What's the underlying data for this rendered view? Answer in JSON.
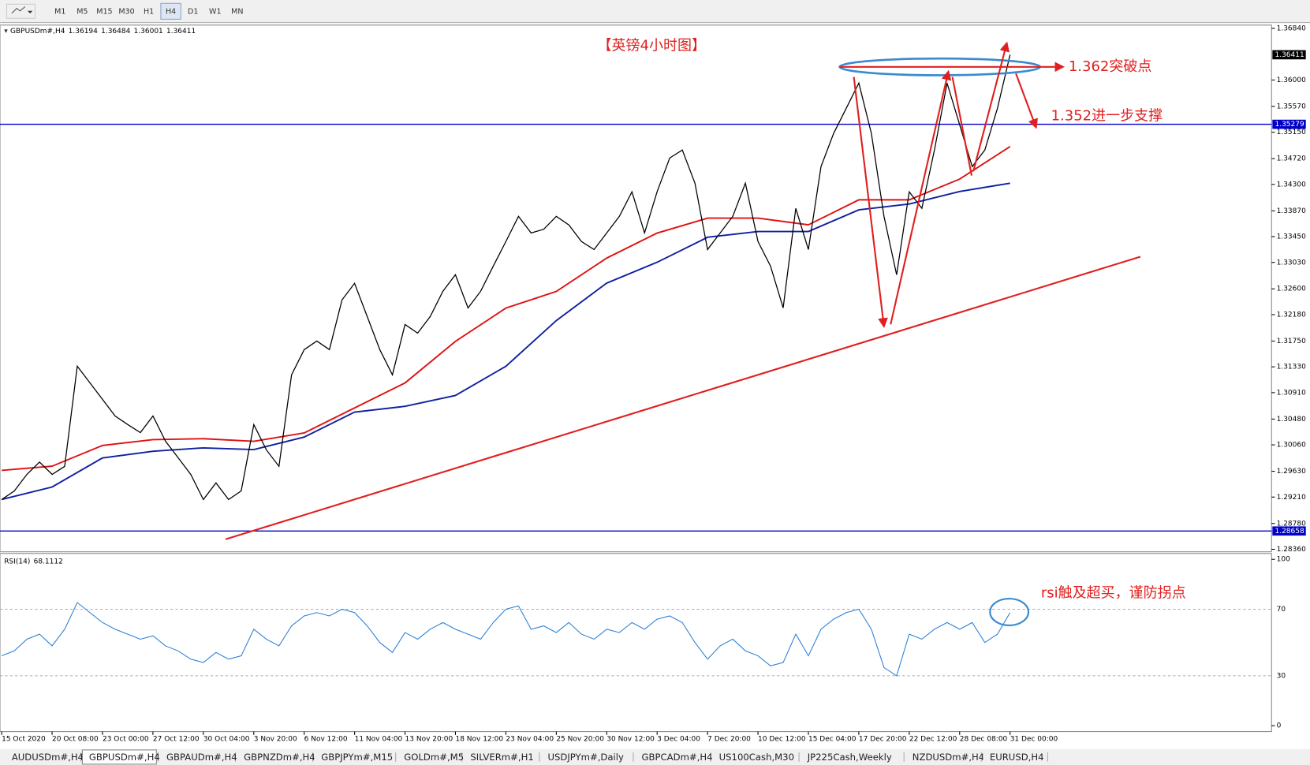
{
  "toolbar": {
    "buttons": [
      "M1",
      "M5",
      "M15",
      "M30",
      "H1",
      "H4",
      "D1",
      "W1",
      "MN"
    ],
    "active_index": 5
  },
  "chart_data": [
    {
      "type": "line",
      "header": "GBPUSDm#,H4",
      "ohlc": [
        1.36194,
        1.36484,
        1.36001,
        1.36411
      ],
      "title": "【英镑4小时图】",
      "annotations": [
        "1.362突破点",
        "1.352进一步支撑"
      ],
      "categories": [
        "15 Oct 2020",
        null,
        null,
        null,
        "20 Oct 08:00",
        null,
        null,
        null,
        "23 Oct 00:00",
        null,
        null,
        null,
        "27 Oct 12:00",
        null,
        null,
        null,
        "30 Oct 04:00",
        null,
        null,
        null,
        "3 Nov 20:00",
        null,
        null,
        null,
        "6 Nov 12:00",
        null,
        null,
        null,
        "11 Nov 04:00",
        null,
        null,
        null,
        "13 Nov 20:00",
        null,
        null,
        null,
        "18 Nov 12:00",
        null,
        null,
        null,
        "23 Nov 04:00",
        null,
        null,
        null,
        "25 Nov 20:00",
        null,
        null,
        null,
        "30 Nov 12:00",
        null,
        null,
        null,
        "3 Dec 04:00",
        null,
        null,
        null,
        "7 Dec 20:00",
        null,
        null,
        null,
        "10 Dec 12:00",
        null,
        null,
        null,
        "15 Dec 04:00",
        null,
        null,
        null,
        "17 Dec 20:00",
        null,
        null,
        null,
        "22 Dec 12:00",
        null,
        null,
        null,
        "28 Dec 08:00",
        null,
        null,
        null,
        "31 Dec 00:00"
      ],
      "values": [
        1.2917,
        1.2931,
        1.2958,
        1.2978,
        1.2958,
        1.2971,
        1.3134,
        1.3107,
        1.308,
        1.3053,
        1.3039,
        1.3026,
        1.3053,
        1.3012,
        1.2985,
        1.2958,
        1.2917,
        1.2944,
        1.2917,
        1.2931,
        1.3039,
        1.2998,
        1.2971,
        1.312,
        1.3161,
        1.3175,
        1.3161,
        1.3242,
        1.3269,
        1.3215,
        1.3161,
        1.312,
        1.3202,
        1.3188,
        1.3215,
        1.3256,
        1.3283,
        1.3229,
        1.3256,
        1.3297,
        1.3337,
        1.3378,
        1.3351,
        1.3357,
        1.3378,
        1.3364,
        1.3337,
        1.3324,
        1.3351,
        1.3378,
        1.3418,
        1.3351,
        1.3418,
        1.3473,
        1.3486,
        1.3432,
        1.3324,
        1.3351,
        1.3378,
        1.3432,
        1.3337,
        1.3297,
        1.3229,
        1.3391,
        1.3324,
        1.3459,
        1.3513,
        1.3554,
        1.3595,
        1.3513,
        1.3378,
        1.3283,
        1.3418,
        1.3391,
        1.3486,
        1.3595,
        1.3527,
        1.3459,
        1.3486,
        1.3554,
        1.36411
      ],
      "color": "#000000",
      "ma": [
        {
          "color": "#e01010",
          "x": [
            0,
            4,
            8,
            12,
            16,
            20,
            24,
            28,
            32,
            36,
            40,
            44,
            48,
            52,
            56,
            60,
            64,
            68,
            72,
            76,
            80
          ],
          "values": [
            1.29645,
            1.29713,
            1.30051,
            1.30146,
            1.3016,
            1.30119,
            1.30255,
            1.30661,
            1.31068,
            1.31745,
            1.32287,
            1.32558,
            1.331,
            1.33507,
            1.33751,
            1.33751,
            1.33642,
            1.34049,
            1.34049,
            1.34387,
            1.34916
          ]
        },
        {
          "color": "#1020a0",
          "x": [
            0,
            4,
            8,
            12,
            16,
            20,
            24,
            28,
            32,
            36,
            40,
            44,
            48,
            52,
            56,
            60,
            64,
            68,
            72,
            76,
            80
          ],
          "values": [
            1.29171,
            1.29374,
            1.29848,
            1.29957,
            1.30011,
            1.29984,
            1.30187,
            1.30593,
            1.30688,
            1.30864,
            1.31339,
            1.32084,
            1.32694,
            1.33032,
            1.33439,
            1.33534,
            1.33534,
            1.33886,
            1.33981,
            1.34184,
            1.3432
          ]
        }
      ],
      "hlines": [
        1.35279,
        1.28658
      ],
      "last_price": 1.36411,
      "ylim": [
        1.28319,
        1.36894
      ],
      "yticks": [
        {
          "value": 1.3684,
          "label": "1.36840"
        },
        {
          "value": 1.36,
          "label": "1.36000"
        },
        {
          "value": 1.3557,
          "label": "1.35570"
        },
        {
          "value": 1.3515,
          "label": "1.35150"
        },
        {
          "value": 1.3472,
          "label": "1.34720"
        },
        {
          "value": 1.343,
          "label": "1.34300"
        },
        {
          "value": 1.3387,
          "label": "1.33870"
        },
        {
          "value": 1.3345,
          "label": "1.33450"
        },
        {
          "value": 1.3303,
          "label": "1.33030"
        },
        {
          "value": 1.326,
          "label": "1.32600"
        },
        {
          "value": 1.3218,
          "label": "1.32180"
        },
        {
          "value": 1.3175,
          "label": "1.31750"
        },
        {
          "value": 1.3133,
          "label": "1.31330"
        },
        {
          "value": 1.3091,
          "label": "1.30910"
        },
        {
          "value": 1.3048,
          "label": "1.30480"
        },
        {
          "value": 1.3006,
          "label": "1.30060"
        },
        {
          "value": 1.2963,
          "label": "1.29630"
        },
        {
          "value": 1.2921,
          "label": "1.29210"
        },
        {
          "value": 1.2878,
          "label": "1.28780"
        },
        {
          "value": 1.2836,
          "label": "1.28360"
        }
      ]
    },
    {
      "type": "line",
      "title": "RSI(14)",
      "last": 68.1112,
      "annotation": "rsi触及超买，谨防拐点",
      "color": "#2a7fd4",
      "values": [
        42,
        45,
        52,
        55,
        48,
        58,
        74,
        68,
        62,
        58,
        55,
        52,
        54,
        48,
        45,
        40,
        38,
        44,
        40,
        42,
        58,
        52,
        48,
        60,
        66,
        68,
        66,
        70,
        68,
        60,
        50,
        44,
        56,
        52,
        58,
        62,
        58,
        55,
        52,
        62,
        70,
        72,
        58,
        60,
        56,
        62,
        55,
        52,
        58,
        56,
        62,
        58,
        64,
        66,
        62,
        50,
        40,
        48,
        52,
        45,
        42,
        36,
        38,
        55,
        42,
        58,
        64,
        68,
        70,
        58,
        35,
        30,
        55,
        52,
        58,
        62,
        58,
        62,
        50,
        55,
        68
      ],
      "ylim": [
        0,
        100
      ],
      "yticks": [
        100,
        70,
        30,
        0
      ]
    }
  ],
  "tabs": {
    "items": [
      "AUDUSDm#,H4",
      "GBPUSDm#,H4",
      "GBPAUDm#,H4",
      "GBPNZDm#,H4",
      "GBPJPYm#,M15",
      "GOLDm#,M5",
      "SILVERm#,H1",
      "USDJPYm#,Daily",
      "GBPCADm#,H4",
      "US100Cash,M30",
      "JP225Cash,Weekly",
      "NZDUSDm#,H4",
      "EURUSD,H4"
    ],
    "active_index": 1
  }
}
